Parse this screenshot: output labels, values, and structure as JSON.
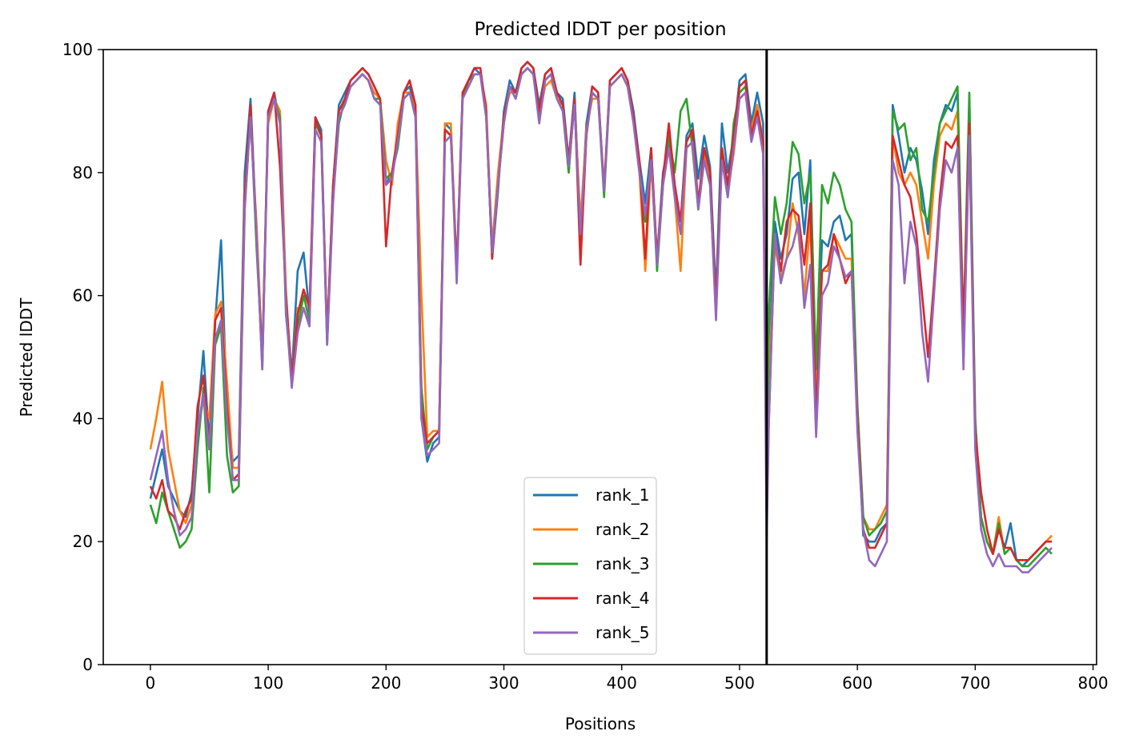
{
  "chart_data": {
    "type": "line",
    "title": "Predicted lDDT per position",
    "xlabel": "Positions",
    "ylabel": "Predicted lDDT",
    "xlim": [
      -40,
      803
    ],
    "ylim": [
      0,
      100
    ],
    "xticks": [
      "0",
      "100",
      "200",
      "300",
      "400",
      "500",
      "600",
      "700",
      "800"
    ],
    "yticks": [
      "0",
      "20",
      "40",
      "60",
      "80",
      "100"
    ],
    "grid": false,
    "legend_position": "lower-center",
    "vline_x": 523,
    "x": [
      0,
      5,
      10,
      15,
      20,
      25,
      30,
      35,
      40,
      45,
      50,
      55,
      60,
      65,
      70,
      75,
      80,
      85,
      90,
      95,
      100,
      105,
      110,
      115,
      120,
      125,
      130,
      135,
      140,
      145,
      150,
      155,
      160,
      165,
      170,
      175,
      180,
      185,
      190,
      195,
      200,
      205,
      210,
      215,
      220,
      225,
      230,
      235,
      240,
      245,
      250,
      255,
      260,
      265,
      270,
      275,
      280,
      285,
      290,
      295,
      300,
      305,
      310,
      315,
      320,
      325,
      330,
      335,
      340,
      345,
      350,
      355,
      360,
      365,
      370,
      375,
      380,
      385,
      390,
      395,
      400,
      405,
      410,
      415,
      420,
      425,
      430,
      435,
      440,
      445,
      450,
      455,
      460,
      465,
      470,
      475,
      480,
      485,
      490,
      495,
      500,
      505,
      510,
      515,
      520,
      523,
      525,
      530,
      535,
      540,
      545,
      550,
      555,
      560,
      565,
      570,
      575,
      580,
      585,
      590,
      595,
      600,
      605,
      610,
      615,
      620,
      625,
      630,
      635,
      640,
      645,
      650,
      655,
      660,
      665,
      670,
      675,
      680,
      685,
      690,
      695,
      700,
      705,
      710,
      715,
      720,
      725,
      730,
      735,
      740,
      745,
      750,
      755,
      760,
      765
    ],
    "series": [
      {
        "name": "rank_1",
        "color": "#1f77b4",
        "values": [
          27,
          31,
          35,
          29,
          27,
          25,
          24,
          28,
          40,
          51,
          36,
          56,
          69,
          41,
          33,
          34,
          80,
          92,
          70,
          48,
          90,
          93,
          88,
          60,
          47,
          64,
          67,
          57,
          89,
          87,
          53,
          78,
          91,
          93,
          95,
          96,
          97,
          96,
          94,
          92,
          78,
          80,
          86,
          93,
          94,
          90,
          40,
          33,
          36,
          37,
          88,
          87,
          63,
          93,
          95,
          97,
          96,
          90,
          66,
          77,
          90,
          95,
          93,
          97,
          98,
          97,
          91,
          96,
          97,
          93,
          92,
          82,
          93,
          70,
          88,
          94,
          93,
          77,
          95,
          96,
          97,
          95,
          90,
          82,
          75,
          84,
          66,
          80,
          85,
          78,
          72,
          86,
          88,
          79,
          86,
          81,
          60,
          88,
          80,
          86,
          95,
          96,
          88,
          93,
          88,
          30,
          50,
          72,
          66,
          70,
          79,
          80,
          70,
          82,
          45,
          69,
          68,
          72,
          73,
          69,
          70,
          40,
          21,
          20,
          20,
          22,
          23,
          91,
          86,
          80,
          84,
          82,
          77,
          70,
          82,
          88,
          91,
          90,
          93,
          50,
          92,
          38,
          24,
          20,
          18,
          22,
          19,
          23,
          17,
          16,
          17,
          18,
          19,
          20,
          20
        ]
      },
      {
        "name": "rank_2",
        "color": "#ff7f0e",
        "values": [
          35,
          40,
          46,
          35,
          30,
          25,
          23,
          26,
          38,
          43,
          40,
          57,
          59,
          46,
          32,
          32,
          77,
          88,
          72,
          50,
          88,
          92,
          90,
          61,
          46,
          58,
          58,
          55,
          88,
          86,
          54,
          76,
          90,
          92,
          94,
          95,
          96,
          95,
          93,
          92,
          82,
          78,
          88,
          93,
          93,
          90,
          60,
          37,
          38,
          38,
          88,
          88,
          64,
          93,
          95,
          96,
          96,
          91,
          68,
          80,
          89,
          93,
          93,
          96,
          97,
          96,
          89,
          94,
          95,
          92,
          91,
          80,
          92,
          72,
          87,
          92,
          92,
          78,
          94,
          95,
          96,
          94,
          88,
          80,
          64,
          82,
          66,
          78,
          84,
          76,
          64,
          84,
          85,
          75,
          83,
          79,
          58,
          84,
          77,
          83,
          92,
          93,
          87,
          91,
          85,
          28,
          47,
          68,
          63,
          66,
          75,
          70,
          60,
          72,
          44,
          64,
          64,
          70,
          68,
          66,
          66,
          42,
          24,
          22,
          22,
          24,
          26,
          86,
          80,
          78,
          80,
          78,
          72,
          66,
          78,
          86,
          88,
          87,
          90,
          52,
          88,
          36,
          24,
          20,
          18,
          24,
          18,
          19,
          17,
          17,
          17,
          18,
          19,
          20,
          21
        ]
      },
      {
        "name": "rank_3",
        "color": "#2ca02c",
        "values": [
          26,
          23,
          28,
          25,
          22,
          19,
          20,
          22,
          35,
          45,
          28,
          52,
          55,
          34,
          28,
          29,
          74,
          90,
          68,
          50,
          90,
          92,
          89,
          57,
          47,
          55,
          60,
          56,
          88,
          86,
          52,
          76,
          88,
          92,
          94,
          95,
          96,
          95,
          92,
          92,
          79,
          80,
          84,
          92,
          93,
          89,
          45,
          35,
          37,
          38,
          87,
          86,
          64,
          92,
          95,
          96,
          96,
          89,
          67,
          78,
          88,
          94,
          92,
          96,
          97,
          96,
          89,
          95,
          96,
          92,
          90,
          80,
          92,
          68,
          86,
          93,
          92,
          76,
          94,
          95,
          96,
          94,
          89,
          81,
          72,
          83,
          64,
          78,
          86,
          80,
          90,
          92,
          84,
          74,
          82,
          78,
          57,
          83,
          76,
          88,
          93,
          94,
          86,
          90,
          84,
          30,
          58,
          76,
          70,
          75,
          85,
          83,
          75,
          80,
          48,
          78,
          75,
          80,
          78,
          74,
          72,
          42,
          24,
          21,
          22,
          23,
          25,
          90,
          87,
          88,
          82,
          84,
          74,
          72,
          80,
          88,
          90,
          92,
          94,
          54,
          93,
          40,
          24,
          20,
          18,
          23,
          18,
          19,
          17,
          16,
          16,
          17,
          18,
          19,
          18
        ]
      },
      {
        "name": "rank_4",
        "color": "#d62728",
        "values": [
          29,
          27,
          30,
          25,
          24,
          22,
          25,
          27,
          42,
          47,
          35,
          56,
          58,
          42,
          30,
          31,
          76,
          91,
          70,
          49,
          90,
          93,
          81,
          60,
          46,
          57,
          61,
          58,
          89,
          86,
          53,
          78,
          90,
          92,
          95,
          96,
          97,
          96,
          94,
          92,
          68,
          80,
          86,
          93,
          95,
          91,
          42,
          36,
          37,
          38,
          87,
          86,
          64,
          93,
          95,
          97,
          97,
          90,
          66,
          78,
          89,
          94,
          93,
          97,
          98,
          97,
          90,
          96,
          97,
          93,
          91,
          82,
          92,
          65,
          86,
          94,
          93,
          77,
          95,
          96,
          97,
          95,
          89,
          82,
          66,
          84,
          66,
          79,
          88,
          78,
          72,
          85,
          87,
          75,
          84,
          80,
          58,
          84,
          78,
          86,
          94,
          95,
          86,
          90,
          85,
          32,
          40,
          70,
          64,
          72,
          74,
          73,
          65,
          75,
          40,
          64,
          65,
          70,
          66,
          62,
          64,
          40,
          22,
          19,
          19,
          21,
          23,
          86,
          82,
          78,
          76,
          70,
          60,
          50,
          62,
          76,
          85,
          84,
          86,
          55,
          88,
          38,
          28,
          22,
          18,
          22,
          19,
          19,
          17,
          17,
          17,
          18,
          19,
          20,
          20
        ]
      },
      {
        "name": "rank_5",
        "color": "#9467bd",
        "values": [
          30,
          34,
          38,
          30,
          25,
          21,
          22,
          24,
          38,
          44,
          35,
          53,
          56,
          40,
          30,
          30,
          74,
          89,
          70,
          48,
          89,
          92,
          88,
          58,
          45,
          54,
          58,
          55,
          87,
          85,
          52,
          75,
          89,
          91,
          94,
          95,
          96,
          95,
          92,
          91,
          78,
          79,
          85,
          92,
          93,
          89,
          40,
          34,
          35,
          36,
          85,
          86,
          62,
          92,
          94,
          96,
          96,
          89,
          67,
          78,
          88,
          94,
          92,
          96,
          97,
          96,
          88,
          95,
          96,
          92,
          90,
          81,
          91,
          70,
          86,
          93,
          92,
          77,
          94,
          95,
          96,
          94,
          88,
          80,
          73,
          82,
          65,
          78,
          84,
          76,
          70,
          84,
          85,
          74,
          82,
          78,
          56,
          82,
          76,
          84,
          92,
          93,
          85,
          89,
          83,
          20,
          40,
          70,
          62,
          66,
          68,
          72,
          58,
          65,
          37,
          60,
          62,
          68,
          66,
          63,
          64,
          38,
          22,
          17,
          16,
          18,
          20,
          82,
          78,
          62,
          72,
          68,
          54,
          46,
          60,
          74,
          82,
          80,
          84,
          48,
          86,
          35,
          22,
          18,
          16,
          18,
          16,
          16,
          16,
          15,
          15,
          16,
          17,
          18,
          19
        ]
      }
    ]
  }
}
